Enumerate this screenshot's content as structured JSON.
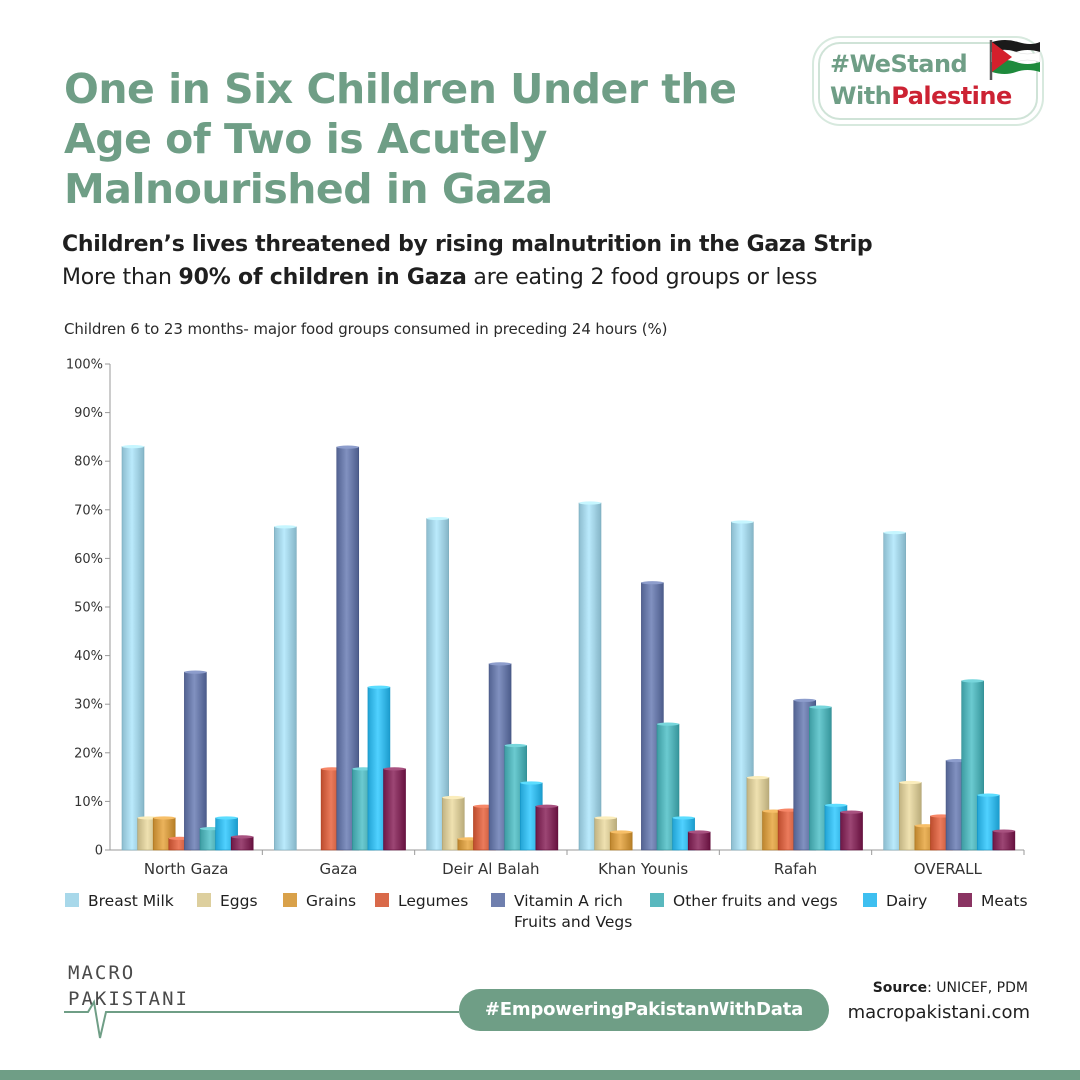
{
  "header": {
    "title": "One in Six Children Under the Age of Two is Acutely Malnourished in Gaza",
    "subtitle": "Children’s lives threatened by rising malnutrition in the Gaza Strip",
    "tagline_before": "More than ",
    "tagline_bold": "90% of children in Gaza",
    "tagline_after": " are eating 2 food groups or less"
  },
  "badge": {
    "line1": "#WeStand",
    "line2_part1": "With",
    "line2_part2": "Palestine"
  },
  "colors": {
    "accent": "#6f9e86",
    "badge_red": "#cc2233"
  },
  "chart_data": {
    "type": "bar",
    "title": "Children 6 to 23 months- major food groups consumed in preceding 24 hours (%)",
    "xlabel": "",
    "ylabel": "",
    "ylim": [
      0,
      100
    ],
    "yticks": [
      "0",
      "10%",
      "20%",
      "30%",
      "40%",
      "50%",
      "60%",
      "70%",
      "80%",
      "90%",
      "100%"
    ],
    "grid": false,
    "legend_position": "bottom",
    "categories": [
      "North Gaza",
      "Gaza",
      "Deir Al Balah",
      "Khan Younis",
      "Rafah",
      "OVERALL"
    ],
    "series": [
      {
        "name": "Breast Milk",
        "color": "#a8d8ea",
        "values": [
          83,
          66.5,
          68.2,
          71.4,
          67.5,
          65.3
        ]
      },
      {
        "name": "Eggs",
        "color": "#ddcf9e",
        "values": [
          6.6,
          0,
          10.8,
          6.6,
          14.9,
          13.9
        ]
      },
      {
        "name": "Grains",
        "color": "#d9a14a",
        "values": [
          6.6,
          0,
          2.3,
          3.7,
          8.0,
          5.0
        ]
      },
      {
        "name": "Legumes",
        "color": "#d9694a",
        "values": [
          2.4,
          16.7,
          9.0,
          0,
          8.2,
          7.0
        ]
      },
      {
        "name": "Vitamin A rich Fruits and Vegs",
        "color": "#6f7fae",
        "values": [
          36.6,
          82.9,
          38.3,
          55.0,
          30.8,
          18.4
        ]
      },
      {
        "name": "Other fruits and vegs",
        "color": "#59b8be",
        "values": [
          4.4,
          16.7,
          21.5,
          25.9,
          29.4,
          34.8
        ]
      },
      {
        "name": "Dairy",
        "color": "#3ebff0",
        "values": [
          6.6,
          33.5,
          13.8,
          6.6,
          9.2,
          11.3
        ]
      },
      {
        "name": "Meats",
        "color": "#8a3462",
        "values": [
          2.7,
          16.7,
          9.0,
          3.7,
          7.8,
          3.9
        ]
      }
    ],
    "legend_lines": [
      [
        "Breast Milk"
      ],
      [
        "Eggs"
      ],
      [
        "Grains"
      ],
      [
        "Legumes"
      ],
      [
        "Vitamin A rich",
        "Fruits and Vegs"
      ],
      [
        "Other fruits and vegs"
      ],
      [
        "Dairy"
      ],
      [
        "Meats"
      ]
    ]
  },
  "footer": {
    "logo_line1": "MACRO",
    "logo_line2": "PAKISTANI",
    "hashtag": "#EmpoweringPakistanWithData",
    "source_label": "Source",
    "source_value": ": UNICEF, PDM",
    "website": "macropakistani.com"
  }
}
